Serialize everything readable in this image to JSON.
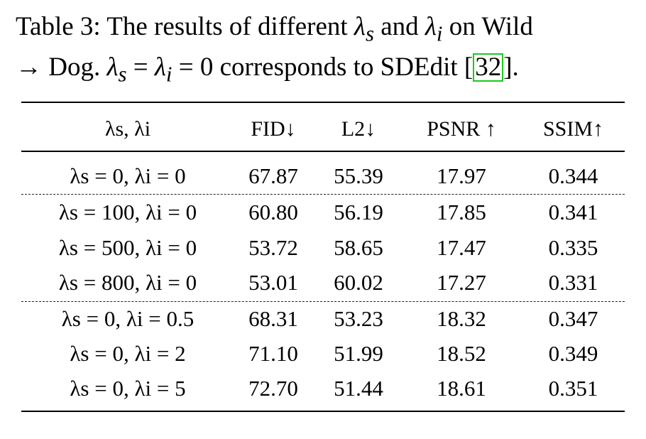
{
  "caption": {
    "line1_prefix": "Table 3: The results of different ",
    "lambda": "λ",
    "sub_s": "s",
    "and_text": " and ",
    "sub_i": "i",
    "line1_suffix": " on Wild",
    "line2_prefix": "→ Dog. ",
    "eq_zero": " = ",
    "eq_zero_tail": " = 0 corresponds to SDEdit [",
    "citation": "32",
    "line2_suffix": "]."
  },
  "table": {
    "headers": {
      "setting": "λs, λi",
      "fid": "FID↓",
      "l2": "L2↓",
      "psnr": "PSNR ↑",
      "ssim": "SSIM↑"
    },
    "rows": [
      {
        "setting": "λs = 0, λi = 0",
        "fid": "67.87",
        "l2": "55.39",
        "psnr": "17.97",
        "ssim": "0.344"
      },
      {
        "setting": "λs = 100, λi = 0",
        "fid": "60.80",
        "l2": "56.19",
        "psnr": "17.85",
        "ssim": "0.341"
      },
      {
        "setting": "λs = 500, λi = 0",
        "fid": "53.72",
        "l2": "58.65",
        "psnr": "17.47",
        "ssim": "0.335"
      },
      {
        "setting": "λs = 800, λi = 0",
        "fid": "53.01",
        "l2": "60.02",
        "psnr": "17.27",
        "ssim": "0.331"
      },
      {
        "setting": "λs = 0, λi = 0.5",
        "fid": "68.31",
        "l2": "53.23",
        "psnr": "18.32",
        "ssim": "0.347"
      },
      {
        "setting": "λs = 0, λi = 2",
        "fid": "71.10",
        "l2": "51.99",
        "psnr": "18.52",
        "ssim": "0.349"
      },
      {
        "setting": "λs = 0, λi = 5",
        "fid": "72.70",
        "l2": "51.44",
        "psnr": "18.61",
        "ssim": "0.351"
      }
    ]
  },
  "colors": {
    "citation_box": "#1ec81e",
    "text": "#000000"
  }
}
